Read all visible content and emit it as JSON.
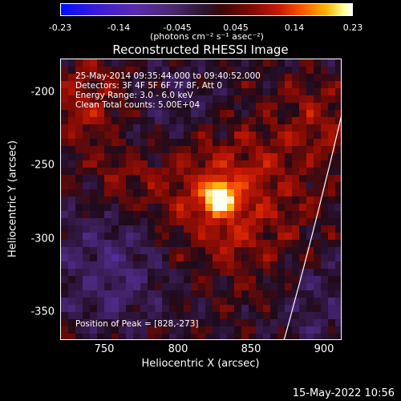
{
  "colorbar": {
    "ticks": [
      "-0.23",
      "-0.14",
      "-0.045",
      "0.045",
      "0.14",
      "0.23"
    ],
    "units": "(photons cm⁻² s⁻¹ asec⁻²)"
  },
  "title": "Reconstructed RHESSI Image",
  "info": {
    "time": "25-May-2014 09:35:44.000 to 09:40:52.000",
    "detectors": "Detectors: 3F 4F 5F 6F 7F 8F, Att 0",
    "energy": "Energy Range: 3.0 - 6.0 keV",
    "clean": "Clean     Total counts: 5.00E+04",
    "peak": "Position of Peak = [828,-273]"
  },
  "axes": {
    "xlabel": "Heliocentric X (arcsec)",
    "ylabel": "Heliocentric Y (arcsec)",
    "xticks": [
      "750",
      "800",
      "850",
      "900"
    ],
    "yticks": [
      "-200",
      "-250",
      "-300",
      "-350"
    ]
  },
  "timestamp": "15-May-2022 10:56",
  "chart_data": {
    "type": "heatmap",
    "title": "Reconstructed RHESSI Image",
    "xlabel": "Heliocentric X (arcsec)",
    "ylabel": "Heliocentric Y (arcsec)",
    "xlim": [
      720,
      912
    ],
    "ylim": [
      -370,
      -180
    ],
    "xticks": [
      750,
      800,
      850,
      900
    ],
    "yticks": [
      -200,
      -250,
      -300,
      -350
    ],
    "colorbar_range": [
      -0.23,
      0.23
    ],
    "colorbar_ticks": [
      -0.23,
      -0.14,
      -0.045,
      0.045,
      0.14,
      0.23
    ],
    "peak": [
      828,
      -273
    ],
    "colormap": [
      "#0010ff",
      "#4a2a90",
      "#2a1530",
      "#8a0a05",
      "#ff5a00",
      "#ffff90",
      "#ffffff"
    ],
    "limb_line": [
      [
        872,
        -370
      ],
      [
        912,
        -215
      ]
    ]
  }
}
